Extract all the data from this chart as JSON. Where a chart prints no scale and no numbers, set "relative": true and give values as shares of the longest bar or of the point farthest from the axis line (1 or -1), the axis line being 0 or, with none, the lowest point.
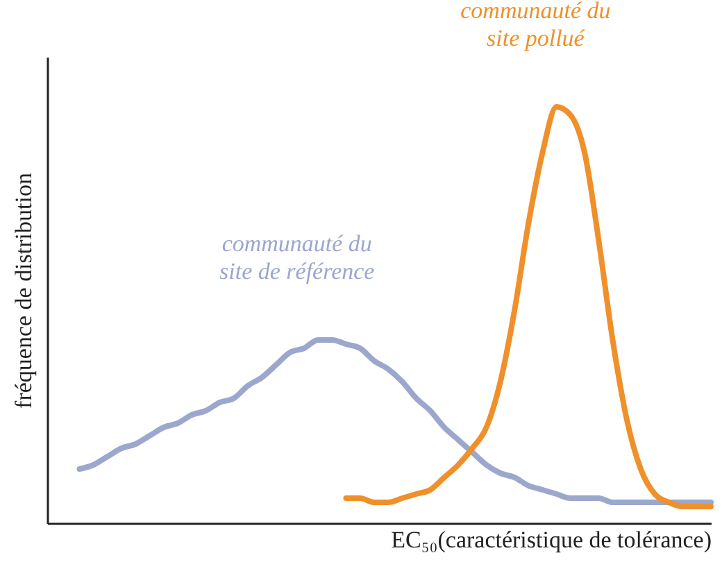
{
  "chart_data": {
    "type": "line",
    "relative": true,
    "xlabel": "EC₅₀(caractéristique de tolérance)",
    "ylabel": "fréquence de distribution",
    "grid": false,
    "legend": false,
    "marker": "none",
    "line_style": "solid",
    "categories": [
      null,
      null,
      null,
      null,
      null,
      null,
      null,
      null,
      null,
      null,
      null,
      null,
      null,
      null,
      null,
      null,
      null,
      null,
      null,
      null,
      null,
      null,
      null,
      null,
      null,
      null,
      null,
      null,
      null,
      null,
      null,
      null,
      null,
      null,
      null,
      null,
      null,
      null,
      null,
      null,
      null,
      null,
      null,
      null,
      null,
      null
    ],
    "series": [
      {
        "name": "communauté du site de référence",
        "color": "#9ba7cd",
        "values": [
          0.13,
          0.14,
          0.16,
          0.18,
          0.19,
          0.21,
          0.23,
          0.24,
          0.26,
          0.27,
          0.29,
          0.3,
          0.33,
          0.35,
          0.38,
          0.41,
          0.42,
          0.44,
          0.44,
          0.43,
          0.42,
          0.39,
          0.37,
          0.34,
          0.3,
          0.27,
          0.23,
          0.2,
          0.17,
          0.14,
          0.12,
          0.11,
          0.09,
          0.08,
          0.07,
          0.06,
          0.06,
          0.06,
          0.05,
          0.05,
          0.05,
          0.05,
          0.05,
          0.05,
          0.05,
          0.05
        ]
      },
      {
        "name": "communauté du site pollué",
        "color": "#f0902a",
        "values": [
          null,
          null,
          null,
          null,
          null,
          null,
          null,
          null,
          null,
          null,
          null,
          null,
          null,
          null,
          null,
          null,
          null,
          null,
          null,
          0.06,
          0.06,
          0.05,
          0.05,
          0.06,
          0.07,
          0.08,
          0.11,
          0.14,
          0.18,
          0.23,
          0.34,
          0.51,
          0.72,
          0.89,
          1.0,
          0.98,
          0.89,
          0.68,
          0.44,
          0.25,
          0.13,
          0.07,
          0.05,
          0.04,
          0.04,
          0.04
        ]
      }
    ]
  }
}
